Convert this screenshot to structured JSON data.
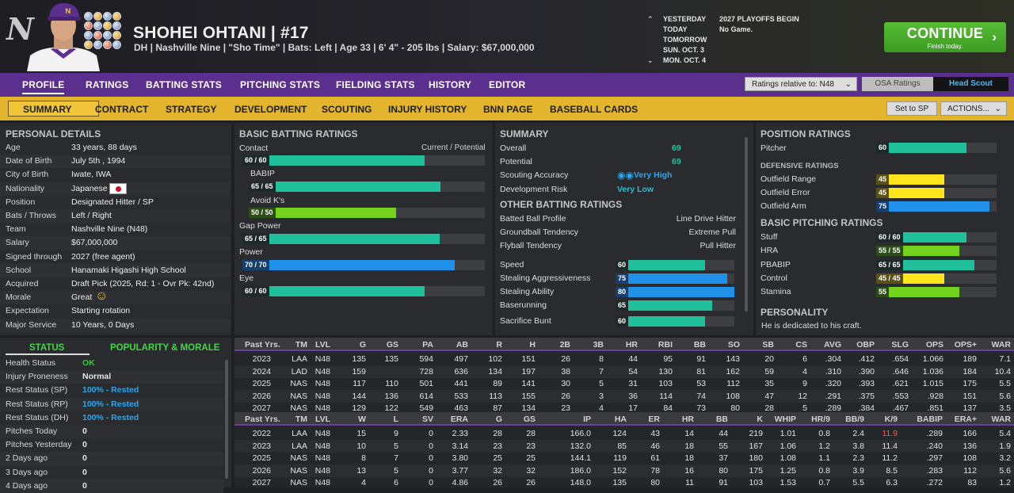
{
  "header": {
    "player_name": "SHOHEI OHTANI  |  #17",
    "player_info": "DH | Nashville Nine | \"Sho Time\" | Bats: Left  | Age 33 | 6' 4\" - 205 lbs | Salary: $67,000,000",
    "days": [
      {
        "day": "YESTERDAY",
        "event": "2027 PLAYOFFS BEGIN"
      },
      {
        "day": "TODAY",
        "event": "No Game."
      },
      {
        "day": "TOMORROW",
        "event": ""
      },
      {
        "day": "SUN. OCT. 3",
        "event": ""
      },
      {
        "day": "MON. OCT. 4",
        "event": ""
      }
    ],
    "continue_label": "CONTINUE",
    "continue_sub": "Finish today."
  },
  "nav_main": [
    "PROFILE",
    "RATINGS",
    "BATTING STATS",
    "PITCHING STATS",
    "FIELDING STATS",
    "HISTORY",
    "EDITOR"
  ],
  "ratings_select": "Ratings relative to: N48",
  "osa_label": "OSA Ratings",
  "head_scout_label": "Head Scout",
  "nav_sub": [
    "SUMMARY",
    "CONTRACT",
    "STRATEGY",
    "DEVELOPMENT",
    "SCOUTING",
    "INJURY HISTORY",
    "BNN PAGE",
    "BASEBALL CARDS"
  ],
  "set_sp_label": "Set to SP",
  "actions_label": "ACTIONS...",
  "personal": {
    "title": "PERSONAL DETAILS",
    "rows": [
      {
        "k": "Age",
        "v": "33 years, 88 days"
      },
      {
        "k": "Date of Birth",
        "v": "July 5th , 1994"
      },
      {
        "k": "City of Birth",
        "v": "Iwate, IWA"
      },
      {
        "k": "Nationality",
        "v": "Japanese"
      },
      {
        "k": "Position",
        "v": "Designated Hitter / SP"
      },
      {
        "k": "Bats / Throws",
        "v": "Left / Right"
      },
      {
        "k": "Team",
        "v": "Nashville Nine (N48)"
      },
      {
        "k": "Salary",
        "v": "$67,000,000"
      },
      {
        "k": "Signed through",
        "v": "2027 (free agent)"
      },
      {
        "k": "School",
        "v": "Hanamaki Higashi High School"
      },
      {
        "k": "Acquired",
        "v": "Draft Pick (2025, Rd: 1 - Ovr Pk: 42nd)"
      },
      {
        "k": "Morale",
        "v": "Great"
      },
      {
        "k": "Expectation",
        "v": "Starting rotation"
      },
      {
        "k": "Major Service",
        "v": "10 Years, 0 Days"
      }
    ]
  },
  "status": {
    "tab_status": "STATUS",
    "tab_popularity": "POPULARITY & MORALE",
    "rows": [
      {
        "k": "Health Status",
        "v": "OK",
        "color": "#39c83c"
      },
      {
        "k": "Injury Proneness",
        "v": "Normal",
        "color": "#e6e6e6"
      },
      {
        "k": "Rest Status (SP)",
        "v": "100% - Rested",
        "color": "#27a8f0"
      },
      {
        "k": "Rest Status (RP)",
        "v": "100% - Rested",
        "color": "#27a8f0"
      },
      {
        "k": "Rest Status (DH)",
        "v": "100% - Rested",
        "color": "#27a8f0"
      },
      {
        "k": "Pitches Today",
        "v": "0",
        "color": "#e6e6e6"
      },
      {
        "k": "Pitches Yesterday",
        "v": "0",
        "color": "#e6e6e6"
      },
      {
        "k": "2 Days ago",
        "v": "0",
        "color": "#e6e6e6"
      },
      {
        "k": "3 Days ago",
        "v": "0",
        "color": "#e6e6e6"
      },
      {
        "k": "4 Days ago",
        "v": "0",
        "color": "#e6e6e6"
      }
    ]
  },
  "batting": {
    "title": "BASIC BATTING RATINGS",
    "col_label": "Current / Potential",
    "ratings": [
      {
        "name": "Contact",
        "label": "60 / 60",
        "value": 60,
        "color": "teal"
      },
      {
        "name": "BABIP",
        "label": "65 / 65",
        "value": 65,
        "color": "teal"
      },
      {
        "name": "Avoid K's",
        "label": "50 / 50",
        "value": 50,
        "color": "lime"
      },
      {
        "name": "Gap Power",
        "label": "65 / 65",
        "value": 65,
        "color": "teal"
      },
      {
        "name": "Power",
        "label": "70 / 70",
        "value": 70,
        "color": "blue"
      },
      {
        "name": "Eye",
        "label": "60 / 60",
        "value": 60,
        "color": "teal"
      }
    ]
  },
  "summary": {
    "title": "SUMMARY",
    "overall_label": "Overall",
    "overall": "69",
    "potential_label": "Potential",
    "potential": "69",
    "scouting_label": "Scouting Accuracy",
    "scouting": "Very High",
    "devrisk_label": "Development Risk",
    "devrisk": "Very Low",
    "other_title": "OTHER BATTING RATINGS",
    "other": [
      {
        "k": "Batted Ball Profile",
        "v": "Line Drive Hitter"
      },
      {
        "k": "Groundball Tendency",
        "v": "Extreme Pull"
      },
      {
        "k": "Flyball Tendency",
        "v": "Pull Hitter"
      }
    ],
    "run": [
      {
        "k": "Speed",
        "label": "60",
        "value": 60,
        "color": "teal"
      },
      {
        "k": "Stealing Aggressiveness",
        "label": "75",
        "value": 75,
        "color": "blue"
      },
      {
        "k": "Stealing Ability",
        "label": "80",
        "value": 80,
        "color": "blue"
      },
      {
        "k": "Baserunning",
        "label": "65",
        "value": 65,
        "color": "teal"
      },
      {
        "k": "Sacrifice Bunt",
        "label": "60",
        "value": 60,
        "color": "teal"
      }
    ]
  },
  "position": {
    "title": "POSITION RATINGS",
    "pitcher_label": "Pitcher",
    "pitcher_value": 60,
    "pitcher_text": "60",
    "def_title": "DEFENSIVE RATINGS",
    "defense": [
      {
        "k": "Outfield Range",
        "label": "45",
        "value": 45,
        "color": "yel"
      },
      {
        "k": "Outfield Error",
        "label": "45",
        "value": 45,
        "color": "yel"
      },
      {
        "k": "Outfield Arm",
        "label": "75",
        "value": 75,
        "color": "blue"
      }
    ],
    "pitch_title": "BASIC PITCHING RATINGS",
    "pitching": [
      {
        "k": "Stuff",
        "label": "60 / 60",
        "value": 60,
        "color": "teal"
      },
      {
        "k": "HRA",
        "label": "55 / 55",
        "value": 55,
        "color": "lime"
      },
      {
        "k": "PBABIP",
        "label": "65 / 65",
        "value": 65,
        "color": "teal"
      },
      {
        "k": "Control",
        "label": "45 / 45",
        "value": 45,
        "color": "yel"
      },
      {
        "k": "Stamina",
        "label": "55",
        "value": 55,
        "color": "lime"
      }
    ],
    "personality_title": "PERSONALITY",
    "personality": "He is dedicated to his craft."
  },
  "batting_table": {
    "headers": [
      "Past Yrs.",
      "TM",
      "LVL",
      "G",
      "GS",
      "PA",
      "AB",
      "R",
      "H",
      "2B",
      "3B",
      "HR",
      "RBI",
      "BB",
      "SO",
      "SB",
      "CS",
      "AVG",
      "OBP",
      "SLG",
      "OPS",
      "OPS+",
      "WAR"
    ],
    "rows": [
      [
        "2023",
        "LAA",
        "N48",
        "135",
        "135",
        "594",
        "497",
        "102",
        "151",
        "26",
        "8",
        "44",
        "95",
        "91",
        "143",
        "20",
        "6",
        ".304",
        ".412",
        ".654",
        "1.066",
        "189",
        "7.1"
      ],
      [
        "2024",
        "LAD",
        "N48",
        "159",
        "",
        "728",
        "636",
        "134",
        "197",
        "38",
        "7",
        "54",
        "130",
        "81",
        "162",
        "59",
        "4",
        ".310",
        ".390",
        ".646",
        "1.036",
        "184",
        "10.4"
      ],
      [
        "2025",
        "NAS",
        "N48",
        "117",
        "110",
        "501",
        "441",
        "89",
        "141",
        "30",
        "5",
        "31",
        "103",
        "53",
        "112",
        "35",
        "9",
        ".320",
        ".393",
        ".621",
        "1.015",
        "175",
        "5.5"
      ],
      [
        "2026",
        "NAS",
        "N48",
        "144",
        "136",
        "614",
        "533",
        "113",
        "155",
        "26",
        "3",
        "36",
        "114",
        "74",
        "108",
        "47",
        "12",
        ".291",
        ".375",
        ".553",
        ".928",
        "151",
        "5.6"
      ],
      [
        "2027",
        "NAS",
        "N48",
        "129",
        "122",
        "549",
        "463",
        "87",
        "134",
        "23",
        "4",
        "17",
        "84",
        "73",
        "80",
        "28",
        "5",
        ".289",
        ".384",
        ".467",
        ".851",
        "137",
        "3.5"
      ]
    ]
  },
  "pitching_table": {
    "headers": [
      "Past Yrs.",
      "TM",
      "LVL",
      "W",
      "L",
      "SV",
      "ERA",
      "G",
      "GS",
      "IP",
      "HA",
      "ER",
      "HR",
      "BB",
      "K",
      "WHIP",
      "HR/9",
      "BB/9",
      "K/9",
      "BABIP",
      "ERA+",
      "WAR"
    ],
    "rows": [
      [
        "2022",
        "LAA",
        "N48",
        "15",
        "9",
        "0",
        "2.33",
        "28",
        "28",
        "166.0",
        "124",
        "43",
        "14",
        "44",
        "219",
        "1.01",
        "0.8",
        "2.4",
        "11.9",
        ".289",
        "166",
        "5.4"
      ],
      [
        "2023",
        "LAA",
        "N48",
        "10",
        "5",
        "0",
        "3.14",
        "23",
        "23",
        "132.0",
        "85",
        "46",
        "18",
        "55",
        "167",
        "1.06",
        "1.2",
        "3.8",
        "11.4",
        ".240",
        "136",
        "1.9"
      ],
      [
        "2025",
        "NAS",
        "N48",
        "8",
        "7",
        "0",
        "3.80",
        "25",
        "25",
        "144.1",
        "119",
        "61",
        "18",
        "37",
        "180",
        "1.08",
        "1.1",
        "2.3",
        "11.2",
        ".297",
        "108",
        "3.2"
      ],
      [
        "2026",
        "NAS",
        "N48",
        "13",
        "5",
        "0",
        "3.77",
        "32",
        "32",
        "186.0",
        "152",
        "78",
        "16",
        "80",
        "175",
        "1.25",
        "0.8",
        "3.9",
        "8.5",
        ".283",
        "112",
        "5.6"
      ],
      [
        "2027",
        "NAS",
        "N48",
        "4",
        "6",
        "0",
        "4.86",
        "26",
        "26",
        "148.0",
        "135",
        "80",
        "11",
        "91",
        "103",
        "1.53",
        "0.7",
        "5.5",
        "6.3",
        ".272",
        "83",
        "1.2"
      ]
    ],
    "highlight_color": "#ff5a4a"
  }
}
